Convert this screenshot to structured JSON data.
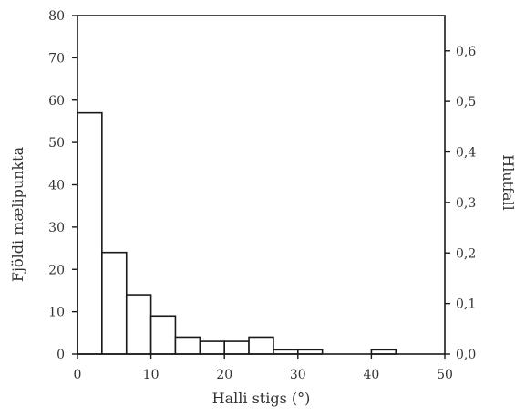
{
  "chart_data": {
    "type": "bar",
    "subtype": "histogram",
    "xlabel": "Halli stigs (°)",
    "ylabel": "Fjöldi mælipunkta",
    "y2label": "Hlutfall",
    "xlim": [
      0,
      50
    ],
    "ylim": [
      0,
      80
    ],
    "y2lim": [
      0,
      0.67
    ],
    "x_ticks": [
      "0",
      "10",
      "20",
      "30",
      "40",
      "50"
    ],
    "y_ticks": [
      "0",
      "10",
      "20",
      "30",
      "40",
      "50",
      "60",
      "70",
      "80"
    ],
    "y2_ticks": [
      "0,0",
      "0,1",
      "0,2",
      "0,3",
      "0,4",
      "0,5",
      "0,6"
    ],
    "bin_width": 3.33,
    "bins": [
      {
        "start": 0.0,
        "end": 3.33,
        "value": 57
      },
      {
        "start": 3.33,
        "end": 6.67,
        "value": 24
      },
      {
        "start": 6.67,
        "end": 10.0,
        "value": 14
      },
      {
        "start": 10.0,
        "end": 13.33,
        "value": 9
      },
      {
        "start": 13.33,
        "end": 16.67,
        "value": 4
      },
      {
        "start": 16.67,
        "end": 20.0,
        "value": 3
      },
      {
        "start": 20.0,
        "end": 23.33,
        "value": 3
      },
      {
        "start": 23.33,
        "end": 26.67,
        "value": 4
      },
      {
        "start": 26.67,
        "end": 30.0,
        "value": 1
      },
      {
        "start": 30.0,
        "end": 33.33,
        "value": 1
      },
      {
        "start": 33.33,
        "end": 36.67,
        "value": 0
      },
      {
        "start": 36.67,
        "end": 40.0,
        "value": 0
      },
      {
        "start": 40.0,
        "end": 43.33,
        "value": 1
      },
      {
        "start": 43.33,
        "end": 46.67,
        "value": 0
      },
      {
        "start": 46.67,
        "end": 50.0,
        "value": 0
      }
    ],
    "grid": false,
    "legend": "none",
    "bar_fill": "#ffffff",
    "line_color": "#1a1a1a"
  }
}
